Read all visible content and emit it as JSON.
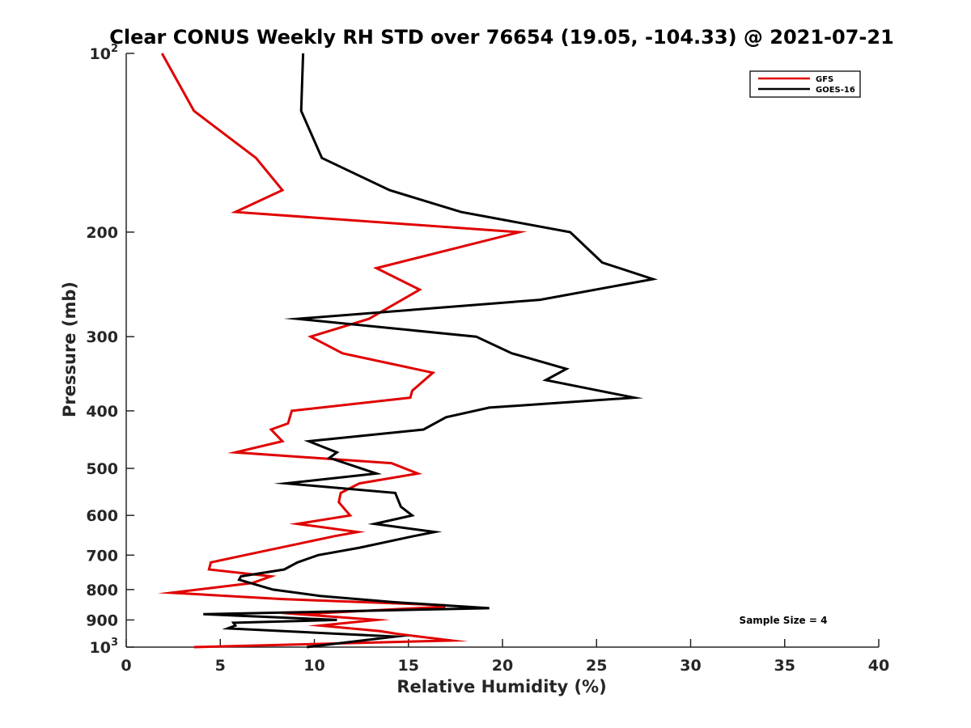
{
  "chart_data": {
    "type": "line",
    "title": "Clear CONUS Weekly RH STD over 76654 (19.05, -104.33) @ 2021-07-21",
    "xlabel": "Relative Humidity (%)",
    "ylabel": "Pressure (mb)",
    "xlim": [
      0,
      40
    ],
    "ylim": [
      100,
      1000
    ],
    "yscale": "log",
    "yreversed": true,
    "x_ticks": [
      "0",
      "5",
      "10",
      "15",
      "20",
      "25",
      "30",
      "35",
      "40"
    ],
    "y_ticks": [
      {
        "value": 100,
        "base": "10",
        "exp": "2"
      },
      {
        "value": 200,
        "label": "200"
      },
      {
        "value": 300,
        "label": "300"
      },
      {
        "value": 400,
        "label": "400"
      },
      {
        "value": 500,
        "label": "500"
      },
      {
        "value": 600,
        "label": "600"
      },
      {
        "value": 700,
        "label": "700"
      },
      {
        "value": 800,
        "label": "800"
      },
      {
        "value": 900,
        "label": "900"
      },
      {
        "value": 1000,
        "base": "10",
        "exp": "3"
      }
    ],
    "legend_position": "top-right",
    "annotation": "Sample Size = 4",
    "series": [
      {
        "name": "GFS",
        "color": "#e00000",
        "points": [
          [
            1.9,
            100
          ],
          [
            3.6,
            125
          ],
          [
            6.9,
            150
          ],
          [
            8.3,
            170
          ],
          [
            5.8,
            185
          ],
          [
            20.9,
            200
          ],
          [
            13.3,
            230
          ],
          [
            15.6,
            250
          ],
          [
            12.9,
            280
          ],
          [
            9.8,
            300
          ],
          [
            11.5,
            320
          ],
          [
            16.3,
            345
          ],
          [
            15.2,
            370
          ],
          [
            15.1,
            380
          ],
          [
            8.8,
            400
          ],
          [
            8.6,
            420
          ],
          [
            7.7,
            430
          ],
          [
            8.3,
            450
          ],
          [
            5.8,
            470
          ],
          [
            14.1,
            490
          ],
          [
            15.5,
            510
          ],
          [
            12.4,
            530
          ],
          [
            11.4,
            550
          ],
          [
            11.3,
            570
          ],
          [
            11.7,
            590
          ],
          [
            11.9,
            600
          ],
          [
            9.1,
            620
          ],
          [
            12.3,
            640
          ],
          [
            11.1,
            650
          ],
          [
            6.3,
            700
          ],
          [
            4.5,
            720
          ],
          [
            4.4,
            740
          ],
          [
            7.7,
            760
          ],
          [
            6.7,
            780
          ],
          [
            2.4,
            810
          ],
          [
            8.3,
            830
          ],
          [
            16.9,
            850
          ],
          [
            16.9,
            855
          ],
          [
            9.2,
            880
          ],
          [
            13.3,
            900
          ],
          [
            10.3,
            920
          ],
          [
            13.5,
            940
          ],
          [
            14.4,
            950
          ],
          [
            17.3,
            975
          ],
          [
            3.6,
            1000
          ]
        ]
      },
      {
        "name": "GOES-16",
        "color": "#000000",
        "points": [
          [
            9.4,
            100
          ],
          [
            9.3,
            125
          ],
          [
            10.4,
            150
          ],
          [
            14.0,
            170
          ],
          [
            17.8,
            185
          ],
          [
            23.6,
            200
          ],
          [
            25.3,
            225
          ],
          [
            28.0,
            240
          ],
          [
            22.0,
            260
          ],
          [
            9.1,
            280
          ],
          [
            18.6,
            300
          ],
          [
            20.5,
            320
          ],
          [
            23.4,
            340
          ],
          [
            22.3,
            355
          ],
          [
            27.0,
            380
          ],
          [
            19.3,
            395
          ],
          [
            17.0,
            410
          ],
          [
            15.8,
            430
          ],
          [
            9.7,
            450
          ],
          [
            11.2,
            470
          ],
          [
            10.8,
            480
          ],
          [
            13.3,
            510
          ],
          [
            8.5,
            530
          ],
          [
            14.3,
            550
          ],
          [
            14.6,
            580
          ],
          [
            15.2,
            600
          ],
          [
            13.2,
            620
          ],
          [
            16.4,
            640
          ],
          [
            15.3,
            650
          ],
          [
            12.4,
            680
          ],
          [
            10.2,
            700
          ],
          [
            9.1,
            720
          ],
          [
            8.4,
            740
          ],
          [
            6.1,
            760
          ],
          [
            6.0,
            770
          ],
          [
            7.8,
            800
          ],
          [
            10.3,
            820
          ],
          [
            14.2,
            840
          ],
          [
            19.3,
            860
          ],
          [
            4.1,
            880
          ],
          [
            11.2,
            900
          ],
          [
            5.7,
            910
          ],
          [
            5.8,
            920
          ],
          [
            5.4,
            930
          ],
          [
            14.3,
            960
          ],
          [
            9.6,
            1000
          ]
        ]
      }
    ]
  }
}
